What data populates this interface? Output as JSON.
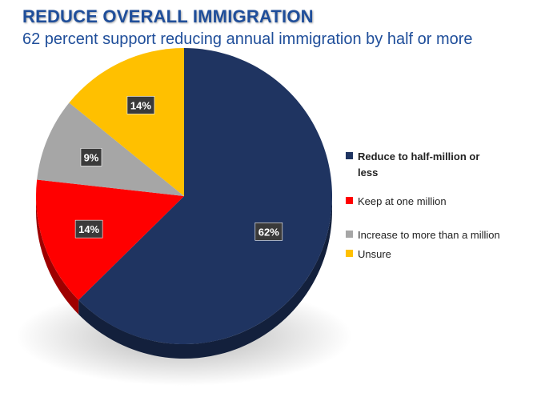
{
  "title": "REDUCE OVERALL IMMIGRATION",
  "subtitle": "62 percent support reducing annual immigration by half or more",
  "chart_data": {
    "type": "pie",
    "categories": [
      "Reduce to half-million or less",
      "Keep at one million",
      "Increase to more than a million",
      "Unsure"
    ],
    "values": [
      62,
      14,
      9,
      14
    ],
    "data_labels": [
      "62%",
      "14%",
      "9%",
      "14%"
    ],
    "colors": [
      "#1f3461",
      "#ff0000",
      "#a6a6a6",
      "#ffc000"
    ],
    "legend_position": "right",
    "style": "3d"
  }
}
